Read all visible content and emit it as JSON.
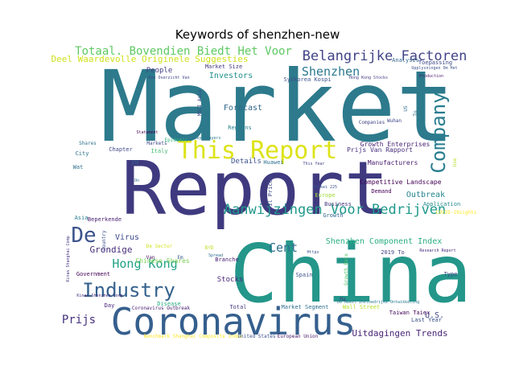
{
  "title": "Keywords of shenzhen-new",
  "chart_data": {
    "type": "wordcloud",
    "title": "Keywords of shenzhen-new",
    "words": [
      {
        "text": "Market",
        "color": "#2c7a8c"
      },
      {
        "text": "Report",
        "color": "#3f3a7f"
      },
      {
        "text": "China",
        "color": "#24968a"
      },
      {
        "text": "Coronavirus",
        "color": "#355f8d"
      },
      {
        "text": "This Report",
        "color": "#dde318"
      },
      {
        "text": "Industry",
        "color": "#34618d"
      },
      {
        "text": "Company",
        "color": "#287d8e"
      },
      {
        "text": "Aanwijzingen Voor Bedrijven",
        "color": "#1f988b"
      },
      {
        "text": "Belangrijke Factoren",
        "color": "#414487"
      },
      {
        "text": "Totaal. Bovendien Biedt Het Voor",
        "color": "#5ec962"
      },
      {
        "text": "Hong Kong",
        "color": "#20a386"
      },
      {
        "text": "Shenzhen",
        "color": "#2a788e"
      },
      {
        "text": "De",
        "color": "#3b528b"
      },
      {
        "text": "Cent",
        "color": "#2d708e"
      },
      {
        "text": "Prijs",
        "color": "#46327e"
      },
      {
        "text": "Uitdagingen Trends",
        "color": "#482576"
      },
      {
        "text": "Deel Waardevolle Originele Suggesties",
        "color": "#d0e11c"
      },
      {
        "text": "Shenzhen Component Index",
        "color": "#29af7f"
      },
      {
        "text": "Outbreak",
        "color": "#24868e"
      },
      {
        "text": "Grondige",
        "color": "#472d7b"
      },
      {
        "text": "Virus",
        "color": "#3e4989"
      },
      {
        "text": "Forecast",
        "color": "#31688e"
      },
      {
        "text": "Investors",
        "color": "#21918c"
      },
      {
        "text": "People",
        "color": "#433e85"
      },
      {
        "text": "Chinese Shares",
        "color": "#7ad151"
      },
      {
        "text": "Stocks",
        "color": "#482878"
      },
      {
        "text": "U.S.",
        "color": "#414487"
      },
      {
        "text": "Details",
        "color": "#3b528b"
      },
      {
        "text": "Competitive Landscape",
        "color": "#440154"
      },
      {
        "text": "Manufacturers",
        "color": "#481a6c"
      },
      {
        "text": "Growth Enterprises",
        "color": "#482475"
      },
      {
        "text": "Prijs Van Rapport",
        "color": "#472f7d"
      },
      {
        "text": "Regions",
        "color": "#26828e"
      },
      {
        "text": "Analysis",
        "color": "#31688e"
      },
      {
        "text": "Toepassing",
        "color": "#3e4a89"
      },
      {
        "text": "Market Size",
        "color": "#453781"
      },
      {
        "text": "Sydkorea Kospi",
        "color": "#3b528b"
      },
      {
        "text": "Companies",
        "color": "#404688"
      },
      {
        "text": "Wuhan",
        "color": "#3f4788"
      },
      {
        "text": "Business",
        "color": "#46337e"
      },
      {
        "text": "Growth",
        "color": "#33638d"
      },
      {
        "text": "Application",
        "color": "#238a8d"
      },
      {
        "text": "COVID-19sights",
        "color": "#fde725"
      },
      {
        "text": "Europe",
        "color": "#a0da39"
      },
      {
        "text": "Demand",
        "color": "#440154"
      },
      {
        "text": "Huawei",
        "color": "#2e6f8e"
      },
      {
        "text": "Government",
        "color": "#440154"
      },
      {
        "text": "Day",
        "color": "#482677"
      },
      {
        "text": "Total",
        "color": "#453882"
      },
      {
        "text": "Market Segment",
        "color": "#2d708e"
      },
      {
        "text": "Wall Street",
        "color": "#b5de2b"
      },
      {
        "text": "Last Year",
        "color": "#3c4f8a"
      },
      {
        "text": "Taiwan Taiex",
        "color": "#46085c"
      },
      {
        "text": "Spain",
        "color": "#3b528b"
      },
      {
        "text": "Branche",
        "color": "#481f70"
      },
      {
        "text": "Disease",
        "color": "#27ad81"
      },
      {
        "text": "Coronavirus Outbreak",
        "color": "#482071"
      },
      {
        "text": "Beperkende",
        "color": "#482173"
      },
      {
        "text": "Chapter",
        "color": "#3f4889"
      },
      {
        "text": "City",
        "color": "#2b748e"
      },
      {
        "text": "Italy",
        "color": "#44bf70"
      },
      {
        "text": "Markets",
        "color": "#3e4989"
      },
      {
        "text": "Shares",
        "color": "#2c728e"
      },
      {
        "text": "Wat",
        "color": "#2e6e8e"
      },
      {
        "text": "Asia",
        "color": "#287c8e"
      },
      {
        "text": "Type",
        "color": "#404588"
      },
      {
        "text": "De Sector",
        "color": "#d2e21b"
      },
      {
        "text": "Van",
        "color": "#470d60"
      },
      {
        "text": "Em",
        "color": "#38588c"
      },
      {
        "text": "BYD",
        "color": "#bddf26"
      },
      {
        "text": "Benchmark Shanghai Composite Index",
        "color": "#fde725"
      },
      {
        "text": "United States",
        "color": "#3b528b"
      },
      {
        "text": "European Union",
        "color": "#481769"
      },
      {
        "text": "Epidemic",
        "color": "#35b779"
      },
      {
        "text": "Key Players",
        "color": "#2a788e"
      },
      {
        "text": "Statement",
        "color": "#440154"
      },
      {
        "text": "Oil Prices",
        "color": "#3e4a89"
      },
      {
        "text": "Growth Rate",
        "color": "#52c569"
      },
      {
        "text": "2019 To",
        "color": "#414487"
      },
      {
        "text": "Research Report",
        "color": "#482979"
      },
      {
        "text": "Kinas Shanghai Comp",
        "color": "#46327e"
      },
      {
        "text": "Kinas Shenzhen Comp",
        "color": "#46327e"
      },
      {
        "text": "Production",
        "color": "#481a6c"
      },
      {
        "text": "Hong Kong Stocks",
        "color": "#433d84"
      },
      {
        "text": "Upplysningen Om Het",
        "color": "#3b528b"
      },
      {
        "text": "Een Overzicht Van",
        "color": "#404688"
      },
      {
        "text": "MSCI Asia",
        "color": "#3f4788"
      },
      {
        "text": "This Year",
        "color": "#414487"
      },
      {
        "text": "Nikkei 225",
        "color": "#3b528b"
      },
      {
        "text": "Country",
        "color": "#3b528b"
      },
      {
        "text": "Spread",
        "color": "#2e6e8e"
      },
      {
        "text": "Https",
        "color": "#3b528b"
      },
      {
        "text": "De Meest Invloedrijke Ontwikkeling",
        "color": "#2a788e"
      },
      {
        "text": "ZTE",
        "color": "#2e6e8e"
      },
      {
        "text": "On",
        "color": "#2e6e8e"
      },
      {
        "text": "To",
        "color": "#2e6e8e"
      },
      {
        "text": "Ma",
        "color": "#433d84"
      },
      {
        "text": "US",
        "color": "#2e6e8e"
      },
      {
        "text": "Use",
        "color": "#b5de2b"
      }
    ]
  }
}
